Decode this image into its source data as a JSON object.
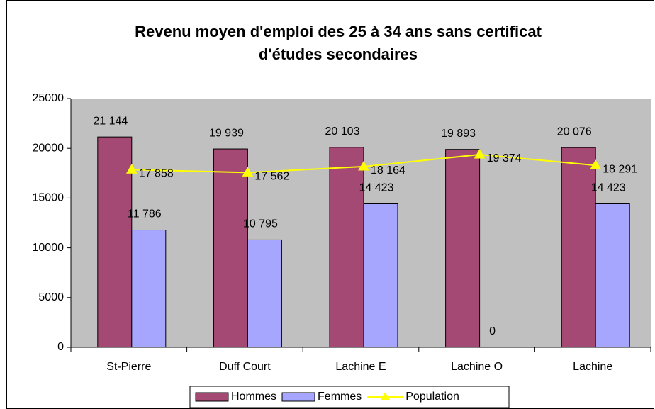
{
  "chart_data": {
    "type": "bar-line",
    "title": [
      "Revenu moyen d'emploi des 25 à 34 ans sans certificat",
      "d'études secondaires"
    ],
    "categories": [
      "St-Pierre",
      "Duff Court",
      "Lachine  E",
      "Lachine  O",
      "Lachine"
    ],
    "series": [
      {
        "name": "Hommes",
        "type": "bar",
        "color": "#a44874",
        "values": [
          21144,
          19939,
          20103,
          19893,
          20076
        ],
        "value_labels": [
          "21 144",
          "19 939",
          "20 103",
          "19 893",
          "20 076"
        ]
      },
      {
        "name": "Femmes",
        "type": "bar",
        "color": "#a6a6ff",
        "values": [
          11786,
          10795,
          14423,
          0,
          14423
        ],
        "value_labels": [
          "11 786",
          "10 795",
          "14 423",
          "0",
          "14 423"
        ]
      },
      {
        "name": "Population",
        "type": "line",
        "color": "#ffff00",
        "values": [
          17858,
          17562,
          18164,
          19374,
          18291
        ],
        "value_labels": [
          "17 858",
          "17 562",
          "18 164",
          "19 374",
          "18 291"
        ]
      }
    ],
    "ylim": [
      0,
      25000
    ],
    "yticks": [
      0,
      5000,
      10000,
      15000,
      20000,
      25000
    ],
    "legend": "bottom"
  }
}
